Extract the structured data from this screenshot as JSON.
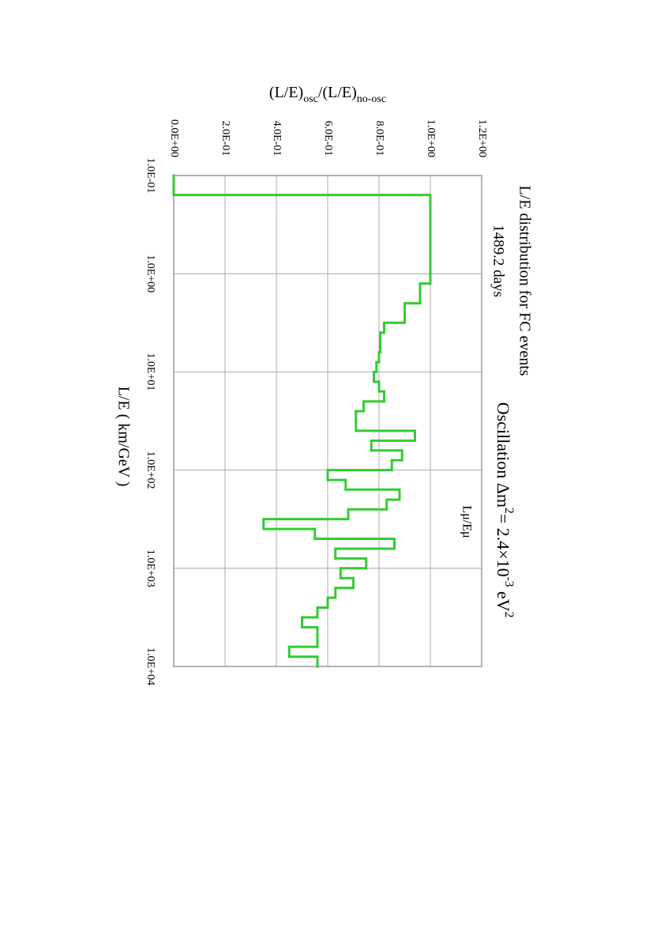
{
  "chart_data": {
    "type": "histogram",
    "title": "L/E distribution for FC events",
    "subtitle": "1489.2 days",
    "subtitle_color": "#3333ff",
    "annotation": [
      {
        "text": "Oscillation Δm"
      },
      {
        "text": "2",
        "shift": "super"
      },
      {
        "text": "= 2.4×10"
      },
      {
        "text": "-3",
        "shift": "super"
      },
      {
        "text": " eV"
      },
      {
        "text": "2",
        "shift": "super"
      }
    ],
    "annotation_color": "#ee0000",
    "xlabel": "L/E  ( km/GeV )",
    "ylabel": [
      {
        "text": "(L/E)"
      },
      {
        "text": "osc",
        "shift": "sub"
      },
      {
        "text": "/(L/E)"
      },
      {
        "text": "no-osc",
        "shift": "sub"
      }
    ],
    "series": [
      {
        "name": "Lμ/Eμ",
        "color": "#33cc33",
        "values": [
          0,
          1.0,
          0.96,
          0.9,
          0.82,
          0.805,
          0.8,
          0.79,
          0.78,
          0.8,
          0.82,
          0.74,
          0.71,
          0.94,
          0.77,
          0.89,
          0.85,
          0.6,
          0.67,
          0.88,
          0.83,
          0.68,
          0.35,
          0.55,
          0.86,
          0.63,
          0.75,
          0.65,
          0.7,
          0.63,
          0.6,
          0.56,
          0.5,
          0.56,
          0.45,
          0.56
        ]
      }
    ],
    "bins": [
      0.1,
      0.158,
      1.26,
      2.0,
      3.16,
      3.98,
      6.31,
      7.94,
      10,
      12.6,
      15.8,
      20,
      25.1,
      39.8,
      50.1,
      63.1,
      79.4,
      100,
      126,
      158,
      200,
      251,
      316,
      398,
      501,
      631,
      794,
      1000,
      1259,
      1585,
      1995,
      2512,
      3162,
      3981,
      6310,
      7943,
      10000
    ],
    "xscale": "log",
    "xlim": [
      0.1,
      10000
    ],
    "xticks": [
      {
        "value": 0.1,
        "label": "1.0E-01"
      },
      {
        "value": 1,
        "label": "1.0E+00"
      },
      {
        "value": 10,
        "label": "1.0E+01"
      },
      {
        "value": 100,
        "label": "1.0E+02"
      },
      {
        "value": 1000,
        "label": "1.0E+03"
      },
      {
        "value": 10000,
        "label": "1.0E+04"
      }
    ],
    "ylim": [
      0,
      1.2
    ],
    "yticks": [
      {
        "value": 0,
        "label": "0.0E+00"
      },
      {
        "value": 0.2,
        "label": "2.0E-01"
      },
      {
        "value": 0.4,
        "label": "4.0E-01"
      },
      {
        "value": 0.6,
        "label": "6.0E-01"
      },
      {
        "value": 0.8,
        "label": "8.0E-01"
      },
      {
        "value": 1.0,
        "label": "1.0E+00"
      },
      {
        "value": 1.2,
        "label": "1.2E+00"
      }
    ],
    "grid": true
  }
}
